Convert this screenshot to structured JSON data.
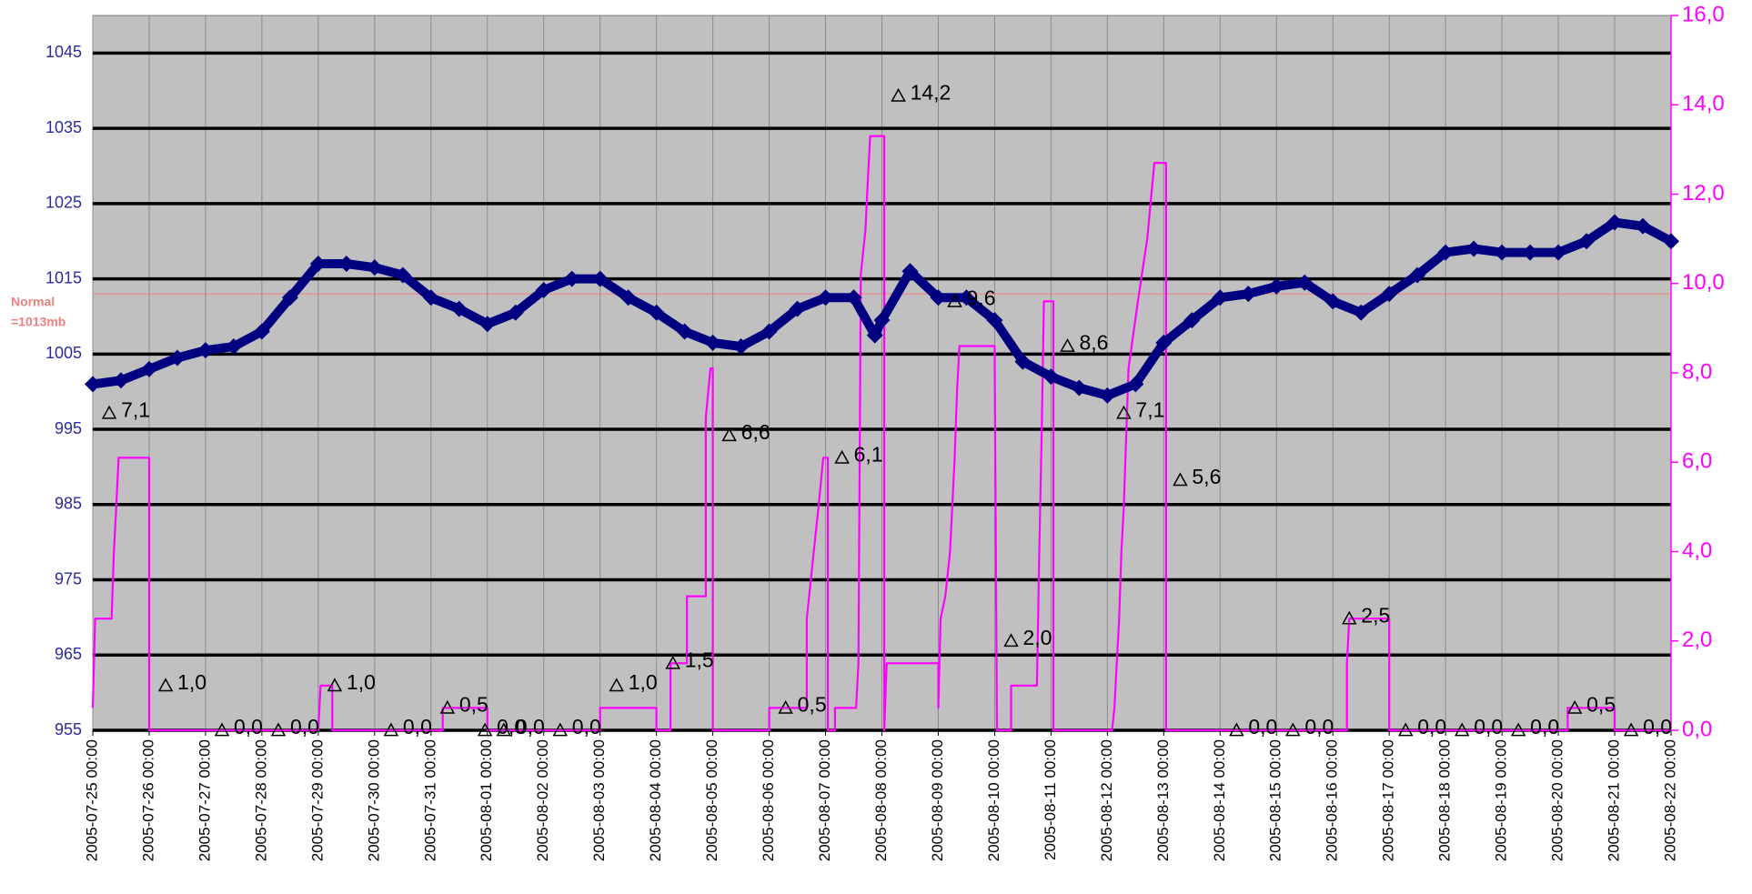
{
  "chart_data": {
    "type": "dual-axis-line",
    "xlim": [
      "2005-07-25 00:00",
      "2005-08-22 00:00"
    ],
    "xticks": [
      "2005-07-25 00:00",
      "2005-07-26 00:00",
      "2005-07-27 00:00",
      "2005-07-28 00:00",
      "2005-07-29 00:00",
      "2005-07-30 00:00",
      "2005-07-31 00:00",
      "2005-08-01 00:00",
      "2005-08-02 00:00",
      "2005-08-03 00:00",
      "2005-08-04 00:00",
      "2005-08-05 00:00",
      "2005-08-06 00:00",
      "2005-08-07 00:00",
      "2005-08-08 00:00",
      "2005-08-09 00:00",
      "2005-08-10 00:00",
      "2005-08-11 00:00",
      "2005-08-12 00:00",
      "2005-08-13 00:00",
      "2005-08-14 00:00",
      "2005-08-15 00:00",
      "2005-08-16 00:00",
      "2005-08-17 00:00",
      "2005-08-18 00:00",
      "2005-08-19 00:00",
      "2005-08-20 00:00",
      "2005-08-21 00:00",
      "2005-08-22 00:00"
    ],
    "ylim": [
      955,
      1050
    ],
    "yticks": [
      955,
      965,
      975,
      985,
      995,
      1005,
      1015,
      1025,
      1035,
      1045
    ],
    "y2lim": [
      0,
      16
    ],
    "y2ticks": [
      {
        "value": 0,
        "label": "0,0"
      },
      {
        "value": 2,
        "label": "2,0"
      },
      {
        "value": 4,
        "label": "4,0"
      },
      {
        "value": 6,
        "label": "6,0"
      },
      {
        "value": 8,
        "label": "8,0"
      },
      {
        "value": 10,
        "label": "10,0"
      },
      {
        "value": 12,
        "label": "12,0"
      },
      {
        "value": 14,
        "label": "14,0"
      },
      {
        "value": 16,
        "label": "16,0"
      }
    ],
    "grid": true,
    "reference_line": {
      "value": 1013,
      "label": [
        "Normal",
        "=1013mb"
      ],
      "color": "#f08080"
    },
    "series": [
      {
        "color": "#000080",
        "marker": "diamond",
        "x": [
          "2005-07-25 00:00",
          "2005-07-25 12:00",
          "2005-07-26 00:00",
          "2005-07-26 12:00",
          "2005-07-27 00:00",
          "2005-07-27 12:00",
          "2005-07-28 00:00",
          "2005-07-28 12:00",
          "2005-07-29 00:00",
          "2005-07-29 12:00",
          "2005-07-30 00:00",
          "2005-07-30 12:00",
          "2005-07-31 00:00",
          "2005-07-31 12:00",
          "2005-08-01 00:00",
          "2005-08-01 12:00",
          "2005-08-02 00:00",
          "2005-08-02 12:00",
          "2005-08-03 00:00",
          "2005-08-03 12:00",
          "2005-08-04 00:00",
          "2005-08-04 12:00",
          "2005-08-05 00:00",
          "2005-08-05 12:00",
          "2005-08-06 00:00",
          "2005-08-06 12:00",
          "2005-08-07 00:00",
          "2005-08-07 12:00",
          "2005-08-07 21:00",
          "2005-08-08 00:00",
          "2005-08-08 12:00",
          "2005-08-09 00:00",
          "2005-08-09 12:00",
          "2005-08-10 00:00",
          "2005-08-10 12:00",
          "2005-08-11 00:00",
          "2005-08-11 12:00",
          "2005-08-12 00:00",
          "2005-08-12 12:00",
          "2005-08-13 00:00",
          "2005-08-13 12:00",
          "2005-08-14 00:00",
          "2005-08-14 12:00",
          "2005-08-15 00:00",
          "2005-08-15 12:00",
          "2005-08-16 00:00",
          "2005-08-16 12:00",
          "2005-08-17 00:00",
          "2005-08-17 12:00",
          "2005-08-18 00:00",
          "2005-08-18 12:00",
          "2005-08-19 00:00",
          "2005-08-19 12:00",
          "2005-08-20 00:00",
          "2005-08-20 12:00",
          "2005-08-21 00:00",
          "2005-08-21 12:00",
          "2005-08-22 00:00"
        ],
        "values": [
          1001,
          1001.5,
          1003,
          1004.5,
          1005.5,
          1006,
          1008,
          1012.5,
          1017,
          1017,
          1016.5,
          1015.5,
          1012.5,
          1011,
          1009,
          1010.5,
          1013.5,
          1015,
          1015,
          1012.5,
          1010.5,
          1008,
          1006.5,
          1006,
          1008,
          1011,
          1012.5,
          1012.5,
          1007.5,
          1009.5,
          1016,
          1012.5,
          1012.5,
          1009.5,
          1004,
          1002,
          1000.5,
          999.5,
          1001,
          1006.5,
          1009.5,
          1012.5,
          1013,
          1014,
          1014.5,
          1012,
          1010.5,
          1013,
          1015.5,
          1018.5,
          1019,
          1018.5,
          1018.5,
          1018.5,
          1020,
          1022.5,
          1022,
          1020
        ]
      },
      {
        "color": "#ff00ff",
        "axis": "y2",
        "marker": "none",
        "x": [
          "2005-07-25 00:00",
          "2005-07-25 01:00",
          "2005-07-25 08:00",
          "2005-07-25 09:00",
          "2005-07-25 10:00",
          "2005-07-25 11:00",
          "2005-07-26 00:00",
          "2005-07-26 00:00",
          "2005-07-29 00:00",
          "2005-07-29 01:00",
          "2005-07-29 06:00",
          "2005-07-29 06:00",
          "2005-07-31 05:00",
          "2005-07-31 05:00",
          "2005-08-01 00:00",
          "2005-08-01 00:00",
          "2005-08-03 00:00",
          "2005-08-03 00:00",
          "2005-08-04 00:00",
          "2005-08-04 00:00",
          "2005-08-04 06:00",
          "2005-08-04 06:00",
          "2005-08-04 13:00",
          "2005-08-04 13:00",
          "2005-08-04 21:00",
          "2005-08-04 21:00",
          "2005-08-04 23:00",
          "2005-08-05 00:00",
          "2005-08-05 00:00",
          "2005-08-06 00:00",
          "2005-08-06 00:00",
          "2005-08-06 16:00",
          "2005-08-06 16:00",
          "2005-08-06 19:00",
          "2005-08-06 21:00",
          "2005-08-06 23:00",
          "2005-08-07 01:00",
          "2005-08-07 01:00",
          "2005-08-07 04:00",
          "2005-08-07 04:00",
          "2005-08-07 13:00",
          "2005-08-07 14:00",
          "2005-08-07 15:00",
          "2005-08-07 17:00",
          "2005-08-07 18:00",
          "2005-08-07 19:00",
          "2005-08-08 01:00",
          "2005-08-08 01:00",
          "2005-08-08 02:00",
          "2005-08-09 00:00",
          "2005-08-09 00:00",
          "2005-08-09 01:00",
          "2005-08-09 03:00",
          "2005-08-09 05:00",
          "2005-08-09 07:00",
          "2005-08-09 08:00",
          "2005-08-09 09:00",
          "2005-08-10 00:00",
          "2005-08-10 01:00",
          "2005-08-10 07:00",
          "2005-08-10 07:00",
          "2005-08-10 18:00",
          "2005-08-10 19:00",
          "2005-08-10 20:00",
          "2005-08-10 21:00",
          "2005-08-11 01:00",
          "2005-08-11 01:00",
          "2005-08-12 02:00",
          "2005-08-12 03:00",
          "2005-08-12 05:00",
          "2005-08-12 06:00",
          "2005-08-12 07:00",
          "2005-08-12 09:00",
          "2005-08-12 13:00",
          "2005-08-12 17:00",
          "2005-08-12 20:00",
          "2005-08-13 01:00",
          "2005-08-13 01:00",
          "2005-08-16 06:00",
          "2005-08-16 06:00",
          "2005-08-16 07:00",
          "2005-08-17 00:00",
          "2005-08-17 00:00",
          "2005-08-20 04:00",
          "2005-08-20 04:00",
          "2005-08-21 00:00",
          "2005-08-21 00:00",
          "2005-08-22 00:00"
        ],
        "values": [
          0.5,
          2.5,
          2.5,
          4.0,
          5.0,
          6.1,
          6.1,
          0,
          0,
          1.0,
          1.0,
          0,
          0,
          0.5,
          0.5,
          0,
          0,
          0.5,
          0.5,
          0,
          0,
          1.5,
          1.5,
          3.0,
          3.0,
          7.0,
          8.1,
          8.1,
          0,
          0,
          0.5,
          0.5,
          2.5,
          4.0,
          5.0,
          6.1,
          6.1,
          0,
          0,
          0.5,
          0.5,
          1.5,
          10.2,
          11.2,
          12.3,
          13.3,
          13.3,
          0,
          1.5,
          1.5,
          0.5,
          2.5,
          3.0,
          4.0,
          6.1,
          7.6,
          8.6,
          8.6,
          0,
          0,
          1.0,
          1.0,
          4.0,
          6.6,
          9.6,
          9.6,
          0,
          0,
          0.5,
          2.5,
          4.0,
          5.0,
          8.1,
          9.6,
          11.0,
          12.7,
          12.7,
          0,
          0,
          1.5,
          2.5,
          2.5,
          0,
          0,
          0.5,
          0.5,
          0,
          0
        ]
      },
      {
        "color": "#000000",
        "axis": "y2",
        "marker": "triangle",
        "line": false,
        "x": [
          "2005-07-25 07:00",
          "2005-07-26 07:00",
          "2005-07-27 07:00",
          "2005-07-28 07:00",
          "2005-07-29 07:00",
          "2005-07-30 07:00",
          "2005-07-31 07:00",
          "2005-07-31 23:00",
          "2005-08-01 07:00",
          "2005-08-02 07:00",
          "2005-08-03 07:00",
          "2005-08-04 07:00",
          "2005-08-05 07:00",
          "2005-08-06 07:00",
          "2005-08-07 07:00",
          "2005-08-08 07:00",
          "2005-08-09 07:00",
          "2005-08-10 07:00",
          "2005-08-11 07:00",
          "2005-08-12 07:00",
          "2005-08-13 07:00",
          "2005-08-14 07:00",
          "2005-08-15 07:00",
          "2005-08-16 07:00",
          "2005-08-17 07:00",
          "2005-08-18 07:00",
          "2005-08-19 07:00",
          "2005-08-20 07:00",
          "2005-08-21 07:00"
        ],
        "values": [
          7.1,
          1.0,
          0,
          0,
          1.0,
          0,
          0.5,
          0,
          0,
          0,
          1.0,
          1.5,
          6.6,
          0.5,
          6.1,
          14.2,
          9.6,
          2.0,
          8.6,
          7.1,
          5.6,
          0,
          0,
          2.5,
          0,
          0,
          0,
          0.5,
          0
        ],
        "value_labels": [
          "7,1",
          "1,0",
          "0,0",
          "0,0",
          "1,0",
          "0,0",
          "0,5",
          "0,0",
          "0,0",
          "0,0",
          "1,0",
          "1,5",
          "6,6",
          "0,5",
          "6,1",
          "14,2",
          "9,6",
          "2,0",
          "8,6",
          "7,1",
          "5,6",
          "0,0",
          "0,0",
          "2,5",
          "0,0",
          "0,0",
          "0,0",
          "0,5",
          "0,0"
        ]
      }
    ]
  }
}
